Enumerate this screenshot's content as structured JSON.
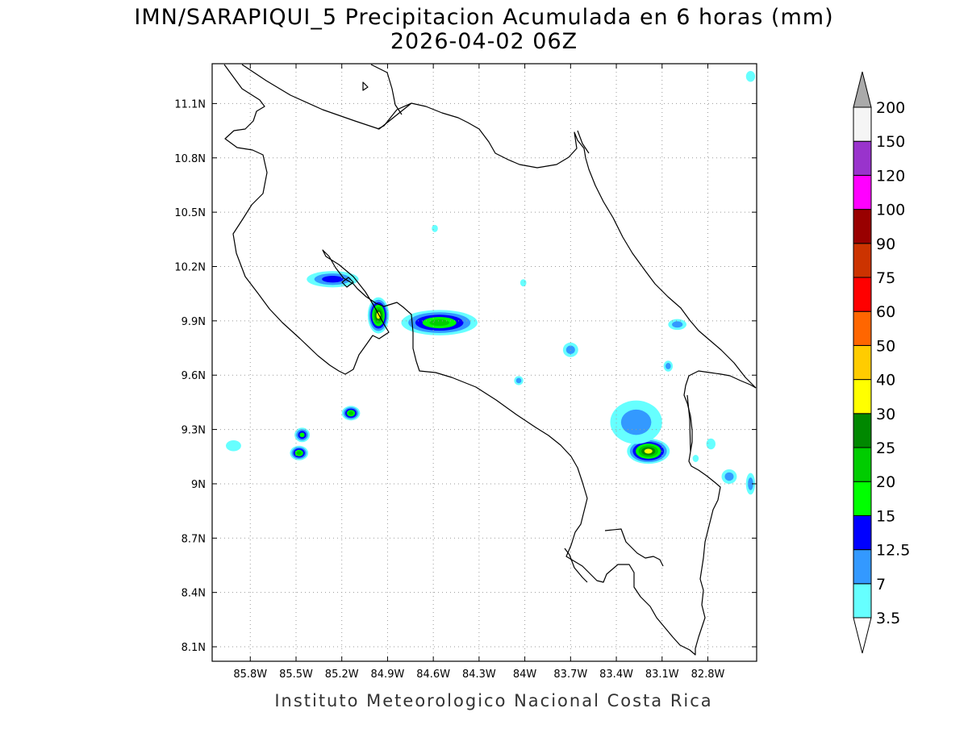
{
  "title": "IMN/SARAPIQUI_5 Precipitacion Acumulada en 6 horas (mm)",
  "subtitle": "2026-04-02 06Z",
  "footer": "Instituto Meteorologico Nacional Costa Rica",
  "map": {
    "lon_range": [
      -86.05,
      -82.48
    ],
    "lat_range": [
      8.02,
      11.32
    ],
    "x_ticks": [
      {
        "value": -85.8,
        "label": "85.8W"
      },
      {
        "value": -85.5,
        "label": "85.5W"
      },
      {
        "value": -85.2,
        "label": "85.2W"
      },
      {
        "value": -84.9,
        "label": "84.9W"
      },
      {
        "value": -84.6,
        "label": "84.6W"
      },
      {
        "value": -84.3,
        "label": "84.3W"
      },
      {
        "value": -84.0,
        "label": "84W"
      },
      {
        "value": -83.7,
        "label": "83.7W"
      },
      {
        "value": -83.4,
        "label": "83.4W"
      },
      {
        "value": -83.1,
        "label": "83.1W"
      },
      {
        "value": -82.8,
        "label": "82.8W"
      }
    ],
    "y_ticks": [
      {
        "value": 11.1,
        "label": "11.1N"
      },
      {
        "value": 10.8,
        "label": "10.8N"
      },
      {
        "value": 10.5,
        "label": "10.5N"
      },
      {
        "value": 10.2,
        "label": "10.2N"
      },
      {
        "value": 9.9,
        "label": "9.9N"
      },
      {
        "value": 9.6,
        "label": "9.6N"
      },
      {
        "value": 9.3,
        "label": "9.3N"
      },
      {
        "value": 9.0,
        "label": "9N"
      },
      {
        "value": 8.7,
        "label": "8.7N"
      },
      {
        "value": 8.4,
        "label": "8.4N"
      },
      {
        "value": 8.1,
        "label": "8.1N"
      }
    ],
    "grid": true
  },
  "colorbar": {
    "levels": [
      {
        "label": "3.5",
        "color": "#66ffff"
      },
      {
        "label": "7",
        "color": "#3399ff"
      },
      {
        "label": "12.5",
        "color": "#0000ff"
      },
      {
        "label": "15",
        "color": "#00ff00"
      },
      {
        "label": "20",
        "color": "#00cc00"
      },
      {
        "label": "25",
        "color": "#008800"
      },
      {
        "label": "30",
        "color": "#ffff00"
      },
      {
        "label": "40",
        "color": "#ffcc00"
      },
      {
        "label": "50",
        "color": "#ff6600"
      },
      {
        "label": "60",
        "color": "#ff0000"
      },
      {
        "label": "75",
        "color": "#cc3300"
      },
      {
        "label": "90",
        "color": "#990000"
      },
      {
        "label": "100",
        "color": "#ff00ff"
      },
      {
        "label": "120",
        "color": "#9933cc"
      },
      {
        "label": "150",
        "color": "#f5f5f5"
      },
      {
        "label": "200",
        "color": "#aaaaaa"
      }
    ]
  },
  "precip_cells": [
    {
      "lon": -85.26,
      "lat": 10.13,
      "rx": 0.17,
      "ry": 0.045,
      "level": 2,
      "name": "nicoya-north-cell"
    },
    {
      "lon": -84.96,
      "lat": 9.93,
      "rx": 0.07,
      "ry": 0.1,
      "level": 6,
      "name": "gulf-nicoya-cell"
    },
    {
      "lon": -84.56,
      "lat": 9.89,
      "rx": 0.25,
      "ry": 0.07,
      "level": 4,
      "name": "central-valley-cell"
    },
    {
      "lon": -83.19,
      "lat": 9.18,
      "rx": 0.14,
      "ry": 0.07,
      "level": 6,
      "name": "talamanca-cell"
    },
    {
      "lon": -83.27,
      "lat": 9.34,
      "rx": 0.17,
      "ry": 0.12,
      "level": 1,
      "name": "talamanca-north-cell"
    },
    {
      "lon": -85.14,
      "lat": 9.39,
      "rx": 0.06,
      "ry": 0.04,
      "level": 4,
      "name": "pacific-offshore-cell-a"
    },
    {
      "lon": -85.48,
      "lat": 9.17,
      "rx": 0.06,
      "ry": 0.04,
      "level": 4,
      "name": "pacific-offshore-cell-b"
    },
    {
      "lon": -85.46,
      "lat": 9.27,
      "rx": 0.05,
      "ry": 0.04,
      "level": 3,
      "name": "pacific-offshore-cell-c"
    },
    {
      "lon": -83.7,
      "lat": 9.74,
      "rx": 0.05,
      "ry": 0.04,
      "level": 1,
      "name": "cartago-cell"
    },
    {
      "lon": -82.66,
      "lat": 9.04,
      "rx": 0.05,
      "ry": 0.04,
      "level": 1,
      "name": "panama-border-cell"
    },
    {
      "lon": -83.0,
      "lat": 9.88,
      "rx": 0.06,
      "ry": 0.03,
      "level": 1,
      "name": "caribbean-coast-cell"
    },
    {
      "lon": -84.04,
      "lat": 9.57,
      "rx": 0.03,
      "ry": 0.025,
      "level": 1,
      "name": "small-cell-a"
    },
    {
      "lon": -83.06,
      "lat": 9.65,
      "rx": 0.03,
      "ry": 0.03,
      "level": 1,
      "name": "small-cell-b"
    },
    {
      "lon": -85.91,
      "lat": 9.21,
      "rx": 0.05,
      "ry": 0.03,
      "level": 0,
      "name": "small-cell-c"
    },
    {
      "lon": -84.59,
      "lat": 10.41,
      "rx": 0.02,
      "ry": 0.02,
      "level": 0,
      "name": "small-cell-d"
    },
    {
      "lon": -84.01,
      "lat": 10.11,
      "rx": 0.02,
      "ry": 0.02,
      "level": 0,
      "name": "small-cell-e"
    },
    {
      "lon": -82.52,
      "lat": 9.0,
      "rx": 0.03,
      "ry": 0.06,
      "level": 1,
      "name": "east-edge-cell"
    },
    {
      "lon": -82.52,
      "lat": 11.25,
      "rx": 0.03,
      "ry": 0.03,
      "level": 0,
      "name": "northeast-corner-cell"
    },
    {
      "lon": -82.78,
      "lat": 9.22,
      "rx": 0.03,
      "ry": 0.03,
      "level": 0,
      "name": "small-cell-f"
    },
    {
      "lon": -82.88,
      "lat": 9.14,
      "rx": 0.02,
      "ry": 0.02,
      "level": 0,
      "name": "small-cell-g"
    }
  ]
}
